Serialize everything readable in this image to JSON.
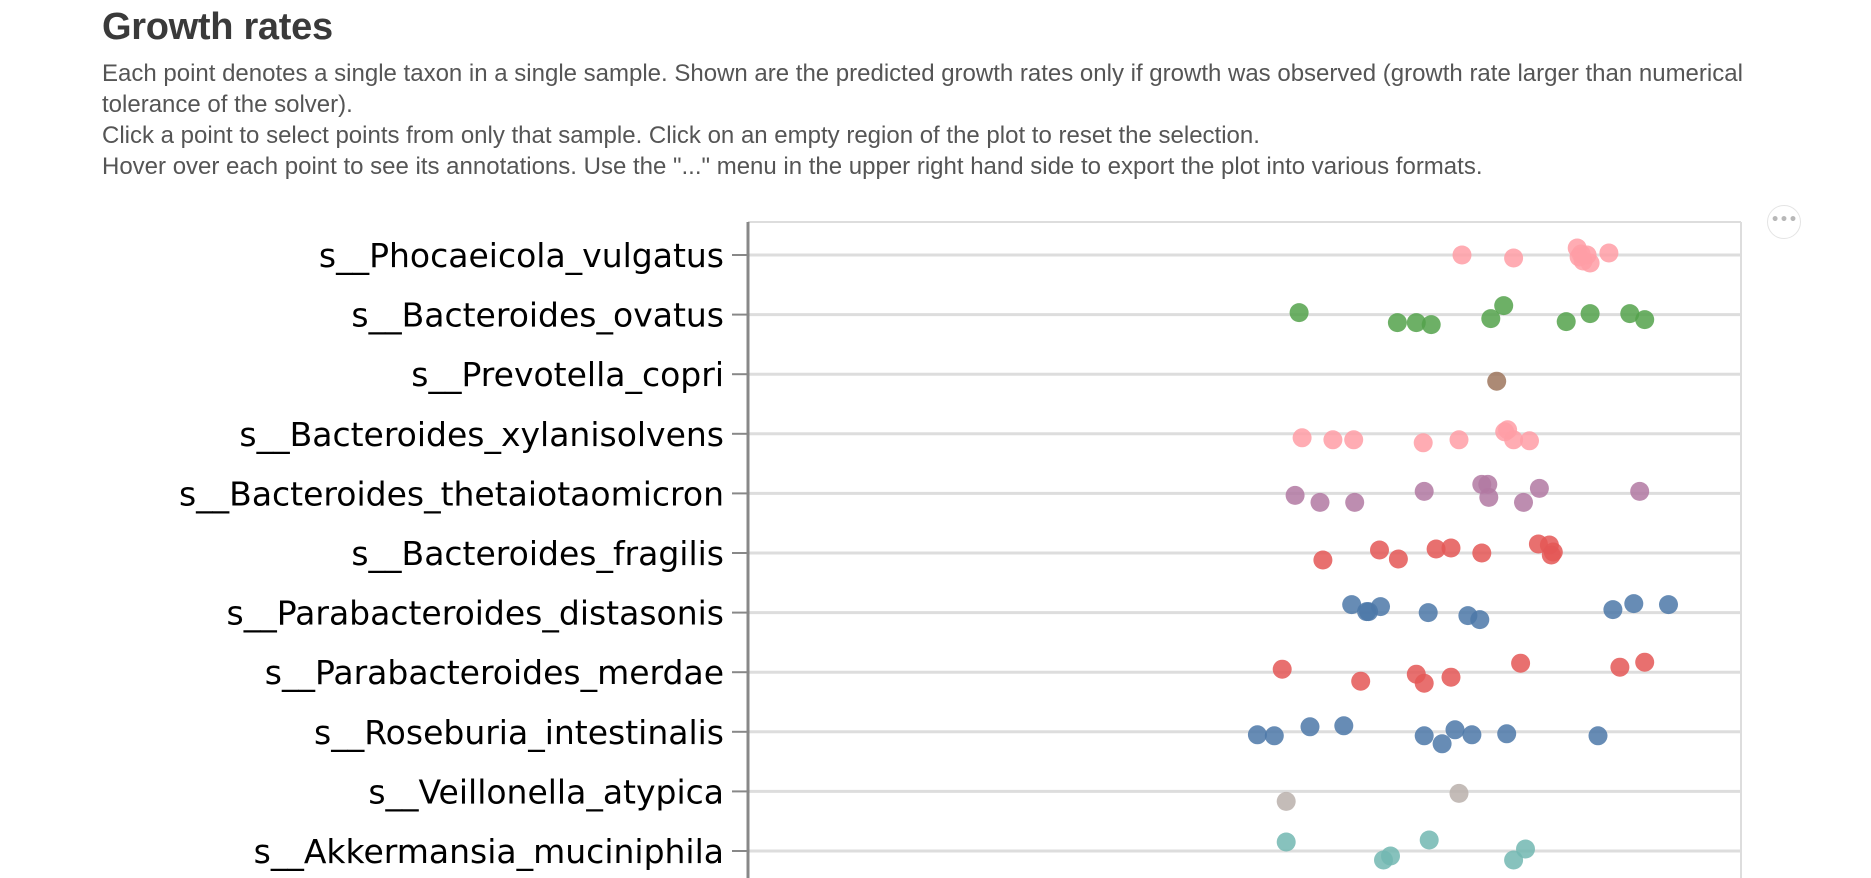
{
  "page": {
    "title": "Growth rates",
    "description": [
      "Each point denotes a single taxon in a single sample. Shown are the predicted growth rates only if growth was observed (growth rate larger than numerical tolerance of the solver).",
      "Click a point to select points from only that sample. Click on an empty region of the plot to reset the selection.",
      "Hover over each point to see its annotations. Use the \"...\" menu in the upper right hand side to export the plot into various formats."
    ],
    "menu_label": "•••"
  },
  "chart_data": {
    "type": "scatter",
    "orientation": "horizontal-strip",
    "grid": true,
    "categories": [
      "s__Phocaeicola_vulgatus",
      "s__Bacteroides_ovatus",
      "s__Prevotella_copri",
      "s__Bacteroides_xylanisolvens",
      "s__Bacteroides_thetaiotaomicron",
      "s__Bacteroides_fragilis",
      "s__Parabacteroides_distasonis",
      "s__Parabacteroides_merdae",
      "s__Roseburia_intestinalis",
      "s__Veillonella_atypica",
      "s__Akkermansia_muciniphila"
    ],
    "colors": [
      "#ff9da6",
      "#54a24b",
      "#9d755d",
      "#ff9da6",
      "#b279a2",
      "#e45756",
      "#4c78a8",
      "#e45756",
      "#4c78a8",
      "#bab0ac",
      "#72b7b2"
    ],
    "x_range": [
      0,
      1
    ],
    "series": [
      {
        "x": [
          0.719,
          0.771,
          0.835,
          0.837,
          0.839,
          0.841,
          0.845,
          0.848,
          0.867
        ],
        "jitter": [
          0.0,
          3,
          -7,
          2,
          -1,
          6,
          0,
          8,
          -2
        ]
      },
      {
        "x": [
          0.555,
          0.654,
          0.673,
          0.688,
          0.748,
          0.761,
          0.824,
          0.848,
          0.888,
          0.903
        ],
        "jitter": [
          -2,
          8,
          8,
          10,
          4,
          -9,
          7,
          -1,
          -1,
          5
        ]
      },
      {
        "x": [
          0.754
        ],
        "jitter": [
          7
        ]
      },
      {
        "x": [
          0.558,
          0.589,
          0.61,
          0.68,
          0.716,
          0.762,
          0.765,
          0.771,
          0.787
        ],
        "jitter": [
          4,
          6,
          6,
          9,
          6,
          -2,
          -4,
          6,
          7
        ]
      },
      {
        "x": [
          0.551,
          0.576,
          0.611,
          0.681,
          0.739,
          0.745,
          0.746,
          0.781,
          0.797,
          0.898
        ],
        "jitter": [
          2,
          9,
          9,
          -2,
          -9,
          -9,
          4,
          9,
          -5,
          -2
        ]
      },
      {
        "x": [
          0.579,
          0.636,
          0.655,
          0.693,
          0.708,
          0.739,
          0.796,
          0.807,
          0.809,
          0.811
        ],
        "jitter": [
          7,
          -3,
          6,
          -4,
          -5,
          0,
          -9,
          -8,
          2,
          -1
        ]
      },
      {
        "x": [
          0.608,
          0.623,
          0.625,
          0.637,
          0.685,
          0.725,
          0.737,
          0.871,
          0.892,
          0.927
        ],
        "jitter": [
          -8,
          -1,
          -1,
          -6,
          0,
          3,
          7,
          -3,
          -9,
          -8
        ]
      },
      {
        "x": [
          0.538,
          0.617,
          0.673,
          0.681,
          0.708,
          0.778,
          0.878,
          0.903
        ],
        "jitter": [
          -3,
          9,
          2,
          11,
          5,
          -9,
          -5,
          -10
        ]
      },
      {
        "x": [
          0.513,
          0.53,
          0.566,
          0.6,
          0.681,
          0.699,
          0.712,
          0.729,
          0.764,
          0.856
        ],
        "jitter": [
          3,
          4,
          -5,
          -6,
          4,
          12,
          -2,
          3,
          2,
          4
        ]
      },
      {
        "x": [
          0.542,
          0.716
        ],
        "jitter": [
          10,
          2
        ]
      },
      {
        "x": [
          0.542,
          0.64,
          0.647,
          0.686,
          0.771,
          0.783
        ],
        "jitter": [
          -9,
          9,
          5,
          -11,
          9,
          -2
        ]
      }
    ]
  }
}
